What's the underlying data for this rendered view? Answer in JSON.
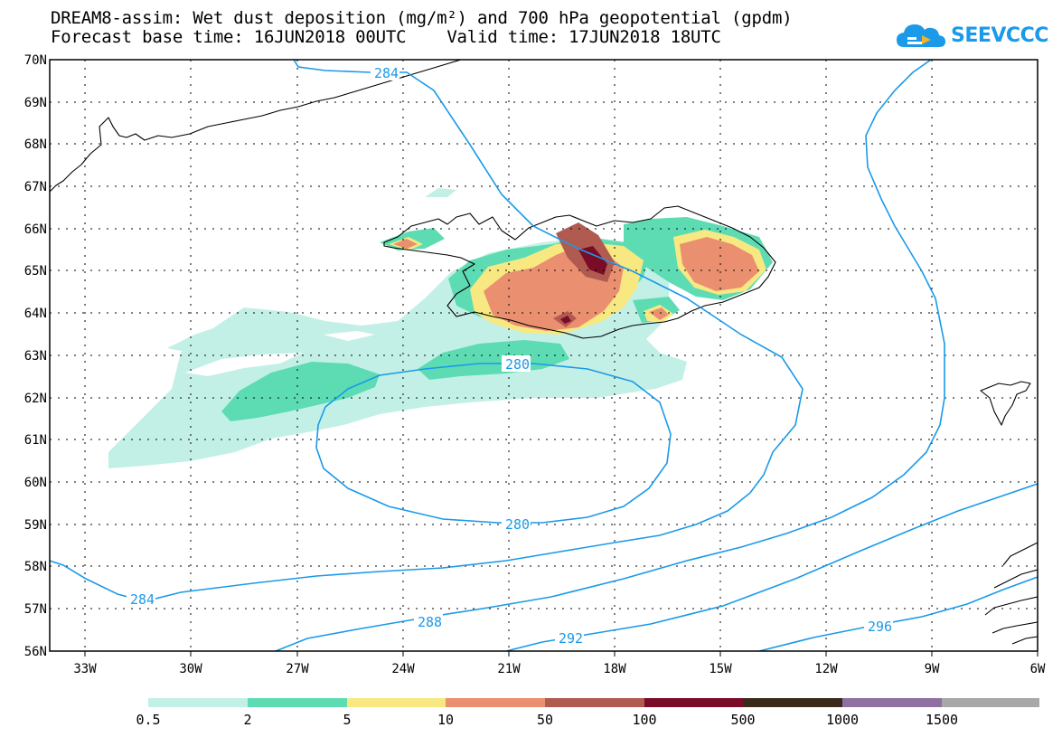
{
  "title_line1": "DREAM8-assim: Wet dust deposition (mg/m²) and 700 hPa geopotential (gpdm)",
  "title_line2": "Forecast base time: 16JUN2018 00UTC    Valid time: 17JUN2018 18UTC",
  "logo": {
    "text": "SEEVCCC",
    "icon": "cloud-icon",
    "color": "#1a9ae8"
  },
  "map": {
    "lat_labels": [
      "70N",
      "69N",
      "68N",
      "67N",
      "66N",
      "65N",
      "64N",
      "63N",
      "62N",
      "61N",
      "60N",
      "59N",
      "58N",
      "57N",
      "56N"
    ],
    "lon_labels": [
      "33W",
      "30W",
      "27W",
      "24W",
      "21W",
      "18W",
      "15W",
      "12W",
      "9W",
      "6W"
    ],
    "contour_labels": [
      "284",
      "280",
      "280",
      "284",
      "288",
      "292",
      "296"
    ],
    "contour_color": "#1a9ae8",
    "coastline_color": "#000000"
  },
  "legend": {
    "colors": [
      "#c3f0e6",
      "#5ddcb4",
      "#f8e882",
      "#ea9070",
      "#b05a50",
      "#7a0c28",
      "#3a2a1a",
      "#9070a0",
      "#a8a8a8"
    ],
    "labels": [
      "0.5",
      "2",
      "5",
      "10",
      "50",
      "100",
      "500",
      "1000",
      "1500"
    ]
  }
}
